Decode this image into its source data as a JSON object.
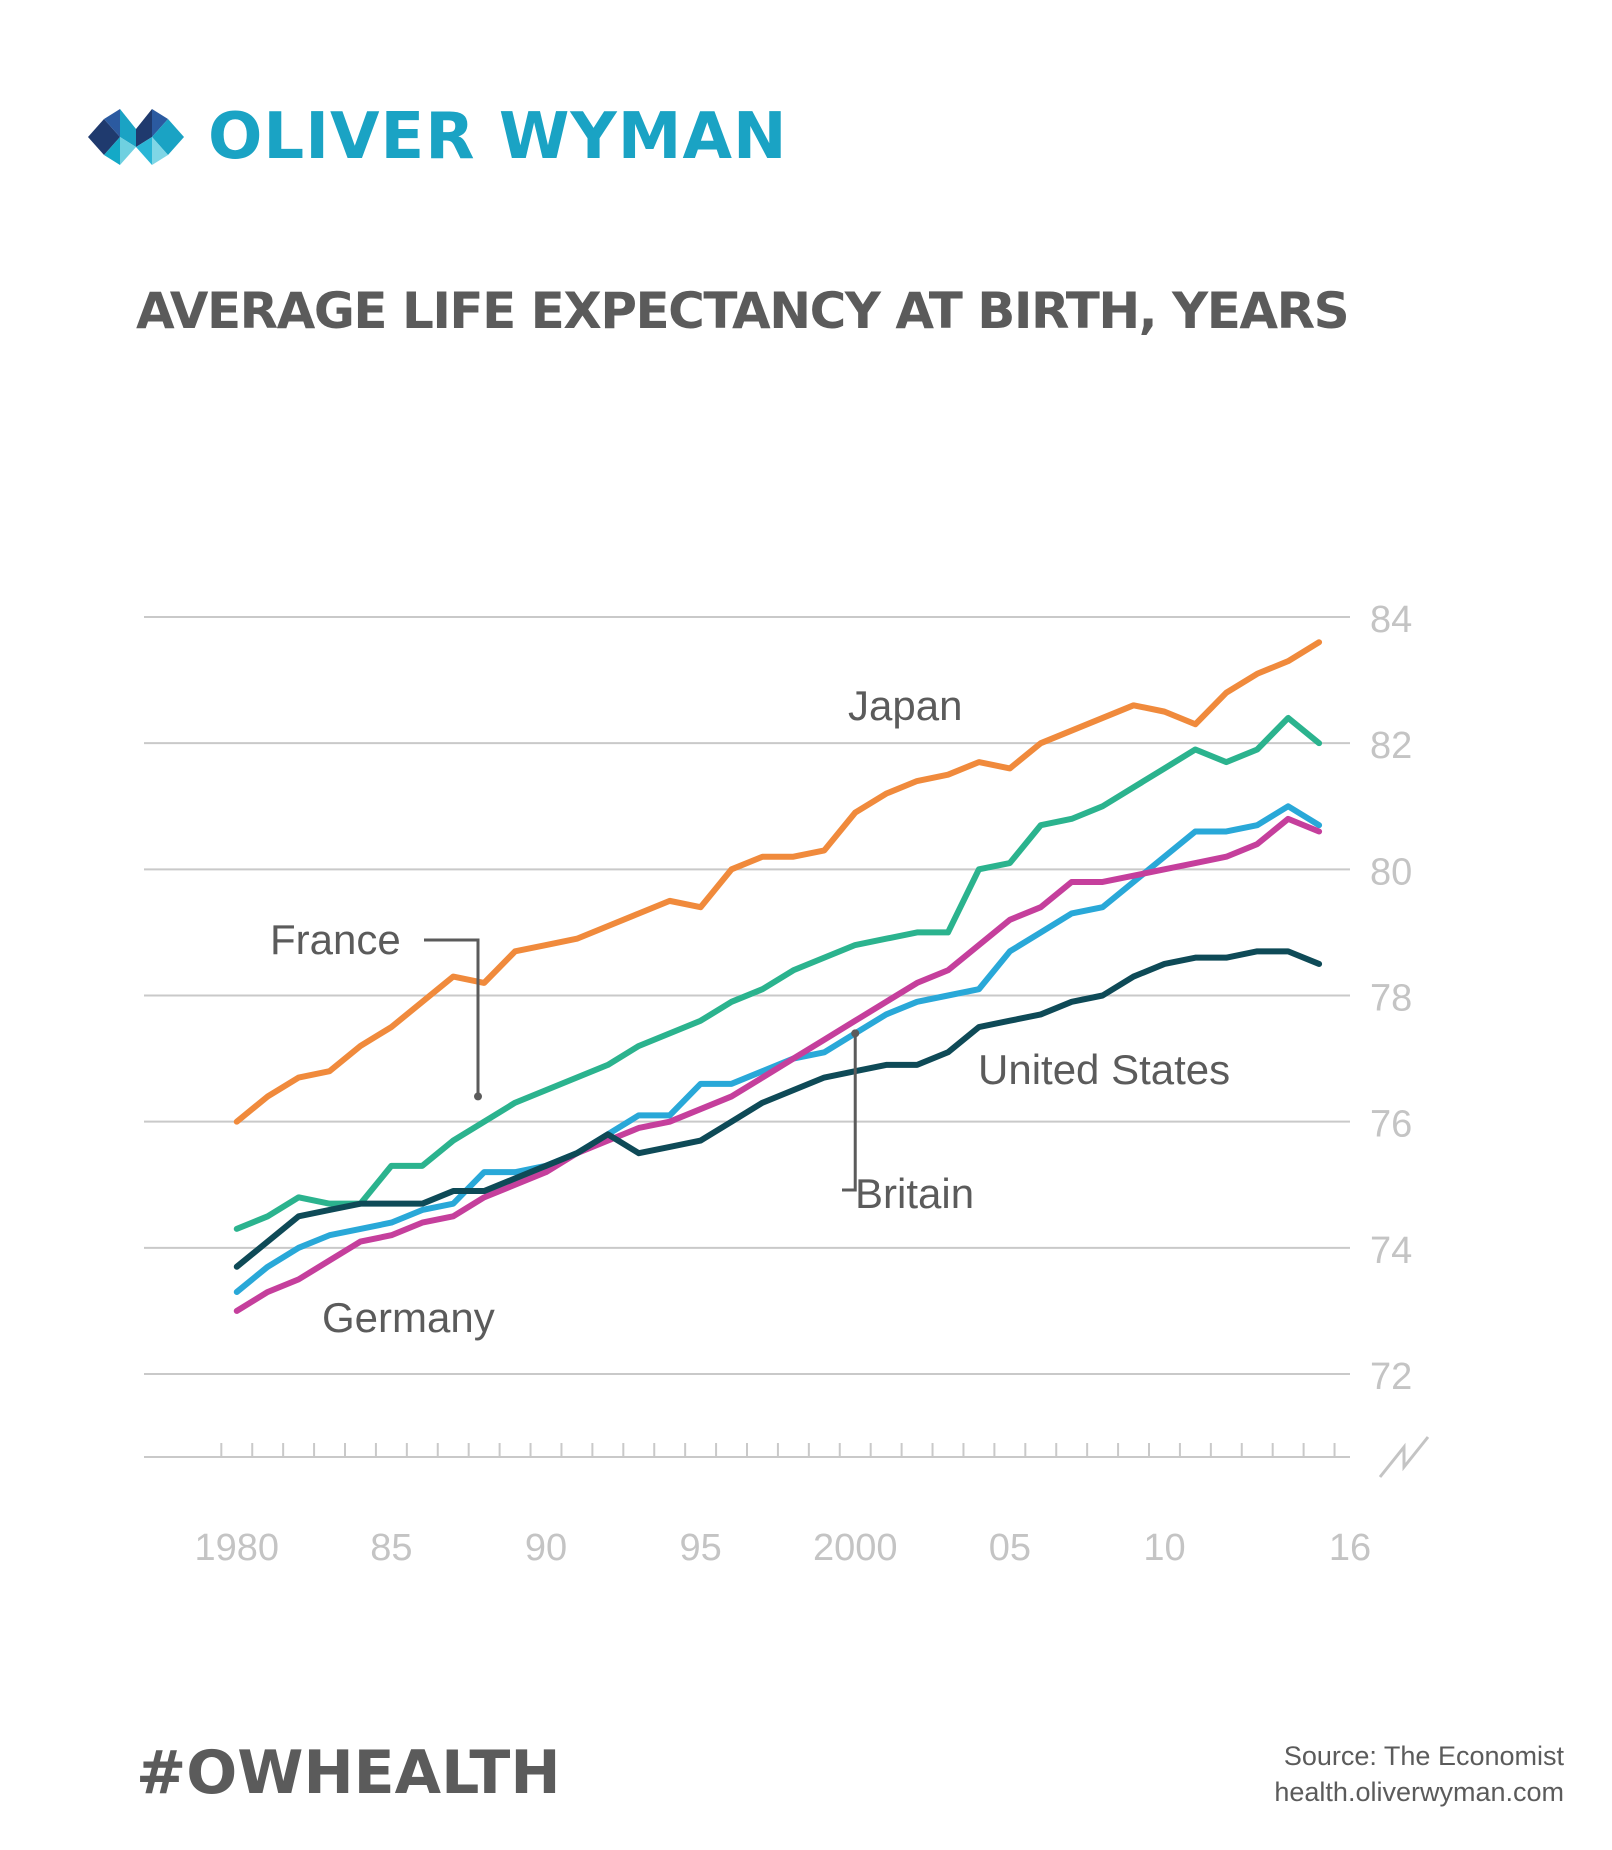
{
  "brand": {
    "name": "OLIVER WYMAN",
    "logo_icon": "oliver-wyman-mark-icon",
    "colors": {
      "brand": "#1aa3c4",
      "dark": "#1f3a6e"
    }
  },
  "chart_data": {
    "type": "line",
    "title": "AVERAGE LIFE EXPECTANCY AT BIRTH, YEARS",
    "xlabel": "",
    "ylabel": "",
    "ylim": [
      72,
      84
    ],
    "y_ticks": [
      84,
      82,
      80,
      78,
      76,
      74,
      72
    ],
    "x_tick_values": [
      1980,
      1985,
      1990,
      1995,
      2000,
      2005,
      2010,
      2016
    ],
    "x_tick_labels": [
      "1980",
      "85",
      "90",
      "95",
      "2000",
      "05",
      "10",
      "16"
    ],
    "xlim": [
      1977,
      2016
    ],
    "y_axis_position": "right",
    "axis_break": true,
    "grid": true,
    "x": [
      1980,
      1981,
      1982,
      1983,
      1984,
      1985,
      1986,
      1987,
      1988,
      1989,
      1990,
      1991,
      1992,
      1993,
      1994,
      1995,
      1996,
      1997,
      1998,
      1999,
      2000,
      2001,
      2002,
      2003,
      2004,
      2005,
      2006,
      2007,
      2008,
      2009,
      2010,
      2011,
      2012,
      2013,
      2014,
      2015
    ],
    "series": [
      {
        "name": "Japan",
        "color": "#f08a3c",
        "values": [
          76.0,
          76.4,
          76.7,
          76.8,
          77.2,
          77.5,
          77.9,
          78.3,
          78.2,
          78.7,
          78.8,
          78.9,
          79.1,
          79.3,
          79.5,
          79.4,
          80.0,
          80.2,
          80.2,
          80.3,
          80.9,
          81.2,
          81.4,
          81.5,
          81.7,
          81.6,
          82.0,
          82.2,
          82.4,
          82.6,
          82.5,
          82.3,
          82.8,
          83.1,
          83.3,
          83.6
        ]
      },
      {
        "name": "France",
        "color": "#2bb38e",
        "values": [
          74.3,
          74.5,
          74.8,
          74.7,
          74.7,
          75.3,
          75.3,
          75.7,
          76.0,
          76.3,
          76.5,
          76.7,
          76.9,
          77.2,
          77.4,
          77.6,
          77.9,
          78.1,
          78.4,
          78.6,
          78.8,
          78.9,
          79.0,
          79.0,
          80.0,
          80.1,
          80.7,
          80.8,
          81.0,
          81.3,
          81.6,
          81.9,
          81.7,
          81.9,
          82.4,
          82.0
        ]
      },
      {
        "name": "Britain",
        "color": "#29a8d8",
        "values": [
          73.3,
          73.7,
          74.0,
          74.2,
          74.3,
          74.4,
          74.6,
          74.7,
          75.2,
          75.2,
          75.3,
          75.5,
          75.8,
          76.1,
          76.1,
          76.6,
          76.6,
          76.8,
          77.0,
          77.1,
          77.4,
          77.7,
          77.9,
          78.0,
          78.1,
          78.7,
          79.0,
          79.3,
          79.4,
          79.8,
          80.2,
          80.6,
          80.6,
          80.7,
          81.0,
          80.7
        ]
      },
      {
        "name": "Germany",
        "color": "#c53f9c",
        "values": [
          73.0,
          73.3,
          73.5,
          73.8,
          74.1,
          74.2,
          74.4,
          74.5,
          74.8,
          75.0,
          75.2,
          75.5,
          75.7,
          75.9,
          76.0,
          76.2,
          76.4,
          76.7,
          77.0,
          77.3,
          77.6,
          77.9,
          78.2,
          78.4,
          78.8,
          79.2,
          79.4,
          79.8,
          79.8,
          79.9,
          80.0,
          80.1,
          80.2,
          80.4,
          80.8,
          80.6
        ]
      },
      {
        "name": "United States",
        "color": "#0e4a57",
        "values": [
          73.7,
          74.1,
          74.5,
          74.6,
          74.7,
          74.7,
          74.7,
          74.9,
          74.9,
          75.1,
          75.3,
          75.5,
          75.8,
          75.5,
          75.6,
          75.7,
          76.0,
          76.3,
          76.5,
          76.7,
          76.8,
          76.9,
          76.9,
          77.1,
          77.5,
          77.6,
          77.7,
          77.9,
          78.0,
          78.3,
          78.5,
          78.6,
          78.6,
          78.7,
          78.7,
          78.5
        ]
      }
    ],
    "annotations": [
      {
        "text": "Japan"
      },
      {
        "text": "France"
      },
      {
        "text": "Britain"
      },
      {
        "text": "Germany"
      },
      {
        "text": "United States"
      }
    ]
  },
  "footer": {
    "hashtag": "#OWHEALTH",
    "source": "Source: The Economist",
    "url": "health.oliverwyman.com"
  }
}
